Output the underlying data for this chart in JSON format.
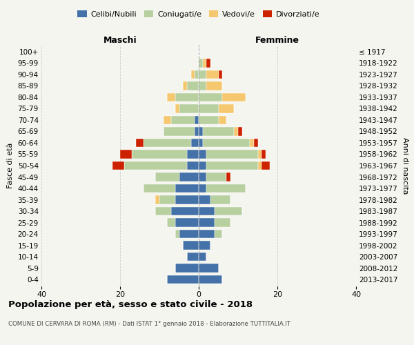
{
  "age_groups": [
    "0-4",
    "5-9",
    "10-14",
    "15-19",
    "20-24",
    "25-29",
    "30-34",
    "35-39",
    "40-44",
    "45-49",
    "50-54",
    "55-59",
    "60-64",
    "65-69",
    "70-74",
    "75-79",
    "80-84",
    "85-89",
    "90-94",
    "95-99",
    "100+"
  ],
  "birth_years": [
    "2013-2017",
    "2008-2012",
    "2003-2007",
    "1998-2002",
    "1993-1997",
    "1988-1992",
    "1983-1987",
    "1978-1982",
    "1973-1977",
    "1968-1972",
    "1963-1967",
    "1958-1962",
    "1953-1957",
    "1948-1952",
    "1943-1947",
    "1938-1942",
    "1933-1937",
    "1928-1932",
    "1923-1927",
    "1918-1922",
    "≤ 1917"
  ],
  "males": {
    "celibi": [
      8,
      6,
      3,
      4,
      5,
      6,
      7,
      6,
      6,
      5,
      3,
      3,
      2,
      1,
      1,
      0,
      0,
      0,
      0,
      0,
      0
    ],
    "coniugati": [
      0,
      0,
      0,
      0,
      1,
      2,
      4,
      4,
      8,
      6,
      16,
      14,
      12,
      8,
      6,
      5,
      6,
      3,
      1,
      0,
      0
    ],
    "vedovi": [
      0,
      0,
      0,
      0,
      0,
      0,
      0,
      1,
      0,
      0,
      0,
      0,
      0,
      0,
      2,
      1,
      2,
      1,
      1,
      0,
      0
    ],
    "divorziati": [
      0,
      0,
      0,
      0,
      0,
      0,
      0,
      0,
      0,
      0,
      3,
      3,
      2,
      0,
      0,
      0,
      0,
      0,
      0,
      0,
      0
    ]
  },
  "females": {
    "nubili": [
      6,
      5,
      2,
      3,
      4,
      4,
      4,
      3,
      2,
      2,
      2,
      2,
      1,
      1,
      0,
      0,
      0,
      0,
      0,
      0,
      0
    ],
    "coniugate": [
      0,
      0,
      0,
      0,
      2,
      4,
      7,
      5,
      10,
      5,
      13,
      13,
      12,
      8,
      5,
      5,
      6,
      2,
      2,
      1,
      0
    ],
    "vedove": [
      0,
      0,
      0,
      0,
      0,
      0,
      0,
      0,
      0,
      0,
      1,
      1,
      1,
      1,
      2,
      4,
      6,
      4,
      3,
      1,
      0
    ],
    "divorziate": [
      0,
      0,
      0,
      0,
      0,
      0,
      0,
      0,
      0,
      1,
      2,
      1,
      1,
      1,
      0,
      0,
      0,
      0,
      1,
      1,
      0
    ]
  },
  "colors": {
    "celibi": "#4472a8",
    "coniugati": "#b8cfa0",
    "vedovi": "#f5c870",
    "divorziati": "#cc2200"
  },
  "xlim": 40,
  "title": "Popolazione per età, sesso e stato civile - 2018",
  "subtitle": "COMUNE DI CERVARA DI ROMA (RM) - Dati ISTAT 1° gennaio 2018 - Elaborazione TUTTITALIA.IT",
  "ylabel_left": "Fasce di età",
  "ylabel_right": "Anni di nascita",
  "xlabel_left": "Maschi",
  "xlabel_right": "Femmine",
  "background_color": "#f5f5f0",
  "legend_labels": [
    "Celibi/Nubili",
    "Coniugati/e",
    "Vedovi/e",
    "Divorziati/e"
  ]
}
